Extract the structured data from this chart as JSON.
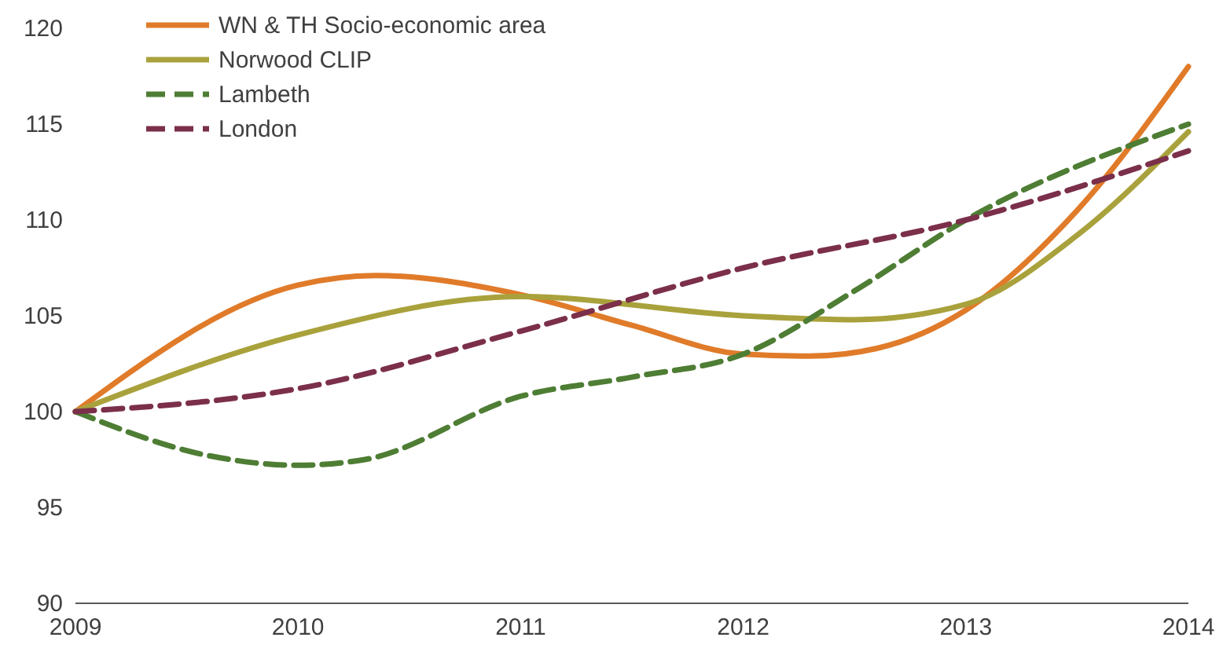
{
  "chart_data": {
    "type": "line",
    "xlim": [
      2009,
      2014
    ],
    "xticks": [
      2009,
      2010,
      2011,
      2012,
      2013,
      2014
    ],
    "ylim": [
      90,
      120
    ],
    "yticks": [
      90,
      95,
      100,
      105,
      110,
      115,
      120
    ],
    "grid": false,
    "legend": "top left",
    "series": [
      {
        "name": "WN & TH Socio-economic area",
        "color": "#e07b2a",
        "line_style": "solid",
        "x": [
          2009,
          2010,
          2010.35,
          2011,
          2011.5,
          2012,
          2012.3,
          2012.6,
          2013,
          2013.5,
          2014
        ],
        "values": [
          100,
          106.6,
          107.1,
          106.1,
          104.5,
          103,
          102.9,
          103.3,
          105.3,
          110.5,
          118
        ]
      },
      {
        "name": "Norwood CLIP",
        "color": "#a9a23c",
        "line_style": "solid",
        "x": [
          2009,
          2010,
          2011,
          2012,
          2012.5,
          2013,
          2013.5,
          2014
        ],
        "values": [
          100,
          104,
          106,
          105,
          104.8,
          105.6,
          109.2,
          114.6
        ]
      },
      {
        "name": "Lambeth",
        "color": "#4e7d34",
        "line_style": "dashed",
        "x": [
          2009,
          2009.6,
          2010,
          2010.3,
          2011,
          2011.5,
          2012,
          2012.5,
          2013,
          2014
        ],
        "values": [
          100,
          97.7,
          97.2,
          97.5,
          100.8,
          101.8,
          103,
          106.3,
          110,
          115
        ]
      },
      {
        "name": "London",
        "color": "#7b2f4a",
        "line_style": "dashed",
        "x": [
          2009,
          2010,
          2011,
          2012,
          2013,
          2014
        ],
        "values": [
          100,
          101.2,
          104.2,
          107.5,
          110,
          113.6
        ]
      }
    ]
  }
}
